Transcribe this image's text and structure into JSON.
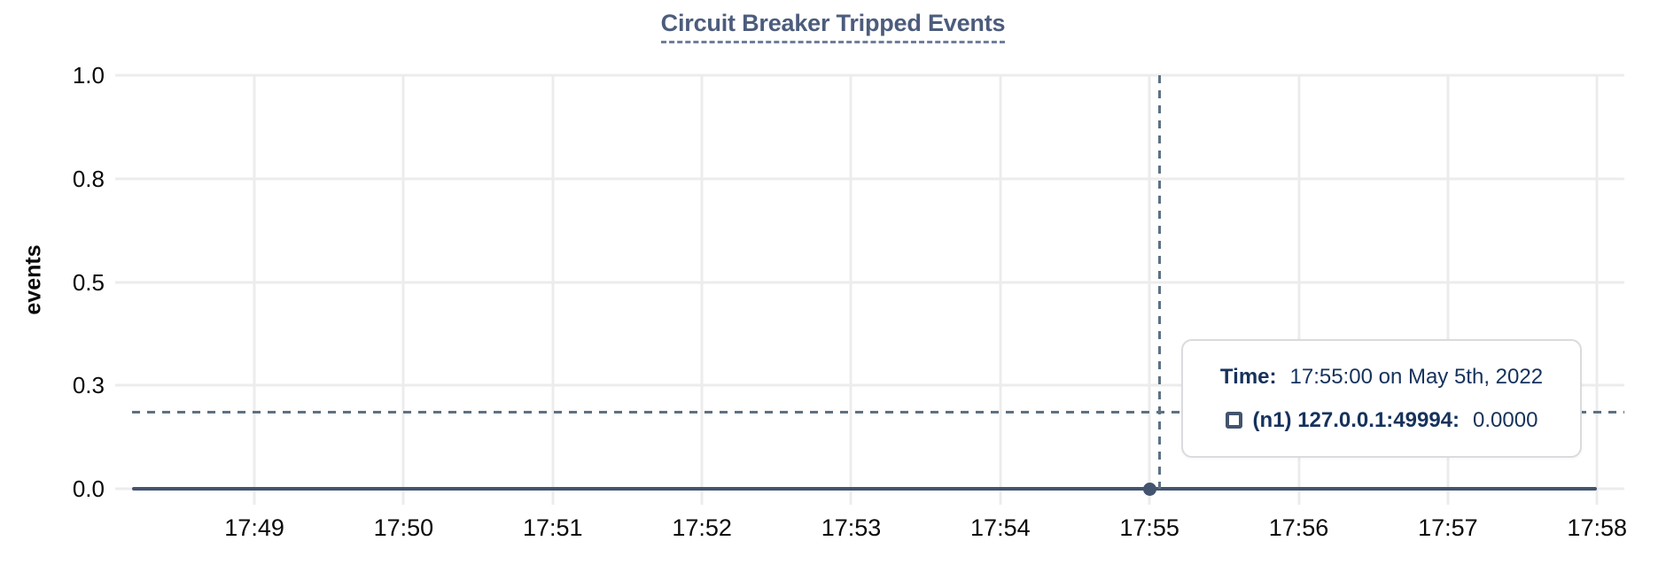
{
  "chart_data": {
    "type": "line",
    "title": "Circuit Breaker Tripped Events",
    "ylabel": "events",
    "xlabel": "",
    "x_tick_labels": [
      "17:49",
      "17:50",
      "17:51",
      "17:52",
      "17:53",
      "17:54",
      "17:55",
      "17:56",
      "17:57",
      "17:58"
    ],
    "y_tick_labels": [
      "1.0",
      "0.8",
      "0.5",
      "0.3",
      "0.0"
    ],
    "y_tick_values": [
      1.0,
      0.75,
      0.5,
      0.25,
      0.0
    ],
    "ylim": [
      0,
      1
    ],
    "grid": true,
    "legend_position": "tooltip",
    "series": [
      {
        "name": "(n1) 127.0.0.1:49994",
        "color": "#44546e",
        "constant_value": 0.0,
        "x_start_frac": 0.0,
        "x_end_tick": "17:58",
        "highlighted_point": {
          "x": "17:55:00",
          "y": 0.0
        }
      }
    ],
    "cursor": {
      "x_frac": 0.6876,
      "y_frac": 0.8116
    }
  },
  "tooltip": {
    "time_label": "Time:",
    "time_value": "17:55:00 on May 5th, 2022",
    "series_label": "(n1) 127.0.0.1:49994:",
    "series_value": "0.0000",
    "marker_icon": "square-outline-icon"
  },
  "colors": {
    "title": "#4c5c7c",
    "title_underline": "#6e7e9d",
    "axis_text": "#0a0a0a",
    "grid": "#ececec",
    "series": "#44546e",
    "cursor": "#5d7183",
    "tooltip_text": "#16325c",
    "tooltip_border": "#d9dbde"
  }
}
